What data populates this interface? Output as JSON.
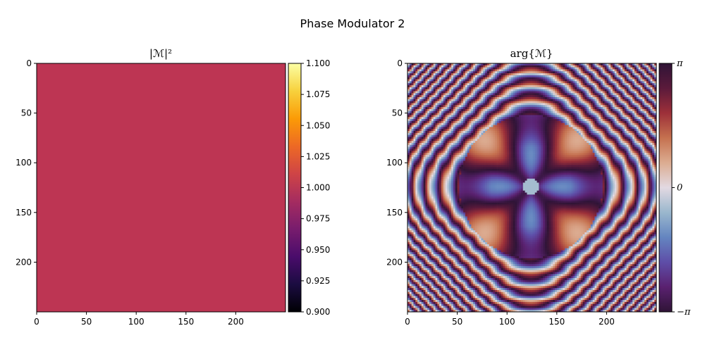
{
  "figure": {
    "title": "Phase Modulator 2"
  },
  "chart_data": [
    {
      "type": "heatmap",
      "title": "|ℳ|²",
      "grid": false,
      "image_size": [
        250,
        250
      ],
      "value": 1.0,
      "value_color": "#bd3553",
      "colormap": "inferno",
      "xlim": [
        0,
        250
      ],
      "ylim": [
        250,
        0
      ],
      "x_ticks": [
        0,
        50,
        100,
        150,
        200
      ],
      "y_ticks": [
        0,
        50,
        100,
        150,
        200
      ],
      "x_tick_labels": [
        "0",
        "50",
        "100",
        "150",
        "200"
      ],
      "y_tick_labels": [
        "0",
        "50",
        "100",
        "150",
        "200"
      ],
      "colorbar": {
        "min": 0.9,
        "max": 1.1,
        "ticks": [
          0.9,
          0.925,
          0.95,
          0.975,
          1.0,
          1.025,
          1.05,
          1.075,
          1.1
        ],
        "tick_labels": [
          "0.900",
          "0.925",
          "0.950",
          "0.975",
          "1.000",
          "1.025",
          "1.050",
          "1.075",
          "1.100"
        ],
        "colors": [
          "#000004",
          "#1b0c41",
          "#4a0c6b",
          "#781c6d",
          "#a52c60",
          "#cf4446",
          "#ed6925",
          "#fb9b06",
          "#f7d13d",
          "#fcffa4"
        ]
      }
    },
    {
      "type": "heatmap",
      "title": "arg{ℳ}",
      "grid": false,
      "image_size": [
        250,
        250
      ],
      "center": [
        124,
        124
      ],
      "colormap": "twilight_shifted",
      "xlim": [
        0,
        250
      ],
      "ylim": [
        250,
        0
      ],
      "x_ticks": [
        0,
        50,
        100,
        150,
        200
      ],
      "y_ticks": [
        0,
        50,
        100,
        150,
        200
      ],
      "x_tick_labels": [
        "0",
        "50",
        "100",
        "150",
        "200"
      ],
      "y_tick_labels": [
        "0",
        "50",
        "100",
        "150",
        "200"
      ],
      "colorbar": {
        "min": -3.14159,
        "max": 3.14159,
        "ticks": [
          -3.14159,
          0,
          3.14159
        ],
        "tick_labels": [
          "−π",
          "0",
          "π"
        ],
        "colors": [
          "#2f1436",
          "#5a2170",
          "#5e4ea8",
          "#6485c0",
          "#9ab7cd",
          "#e2d9e2",
          "#dcac91",
          "#c5714f",
          "#9d3039",
          "#5b1a3b",
          "#2f1436"
        ]
      }
    }
  ]
}
